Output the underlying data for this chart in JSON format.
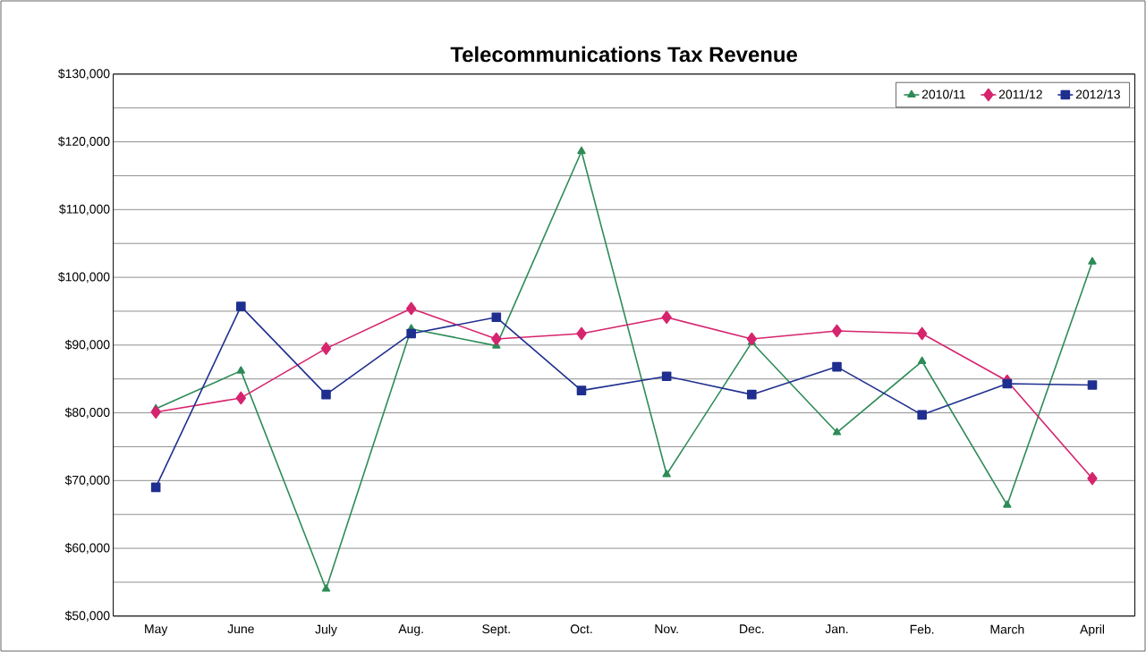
{
  "chart_data": {
    "type": "line",
    "title": "Telecommunications Tax Revenue",
    "categories": [
      "May",
      "June",
      "July",
      "Aug.",
      "Sept.",
      "Oct.",
      "Nov.",
      "Dec.",
      "Jan.",
      "Feb.",
      "March",
      "April"
    ],
    "series": [
      {
        "name": "2010/11",
        "color": "#2e8b57",
        "marker": "triangle",
        "values": [
          80600,
          86200,
          54000,
          92400,
          89900,
          118600,
          70900,
          90400,
          77100,
          87600,
          66400,
          102300
        ]
      },
      {
        "name": "2011/12",
        "color": "#d6246e",
        "marker": "diamond",
        "values": [
          80100,
          82200,
          89500,
          95400,
          90900,
          91700,
          94100,
          90900,
          92100,
          91700,
          84700,
          70300
        ]
      },
      {
        "name": "2012/13",
        "color": "#1f2f8f",
        "marker": "square",
        "values": [
          69000,
          95700,
          82700,
          91700,
          94100,
          83300,
          85400,
          82700,
          86800,
          79700,
          84300,
          84100
        ]
      }
    ],
    "ylim": [
      50000,
      130000
    ],
    "yticks": [
      {
        "value": 50000,
        "label": "$50,000"
      },
      {
        "value": 55000,
        "label": null
      },
      {
        "value": 60000,
        "label": "$60,000"
      },
      {
        "value": 65000,
        "label": null
      },
      {
        "value": 70000,
        "label": "$70,000"
      },
      {
        "value": 75000,
        "label": null
      },
      {
        "value": 80000,
        "label": "$80,000"
      },
      {
        "value": 85000,
        "label": null
      },
      {
        "value": 90000,
        "label": "$90,000"
      },
      {
        "value": 95000,
        "label": null
      },
      {
        "value": 100000,
        "label": "$100,000"
      },
      {
        "value": 105000,
        "label": null
      },
      {
        "value": 110000,
        "label": "$110,000"
      },
      {
        "value": 115000,
        "label": null
      },
      {
        "value": 120000,
        "label": "$120,000"
      },
      {
        "value": 125000,
        "label": null
      },
      {
        "value": 130000,
        "label": "$130,000"
      }
    ],
    "grid": "y",
    "legend": "top right",
    "line_style": "solid"
  }
}
